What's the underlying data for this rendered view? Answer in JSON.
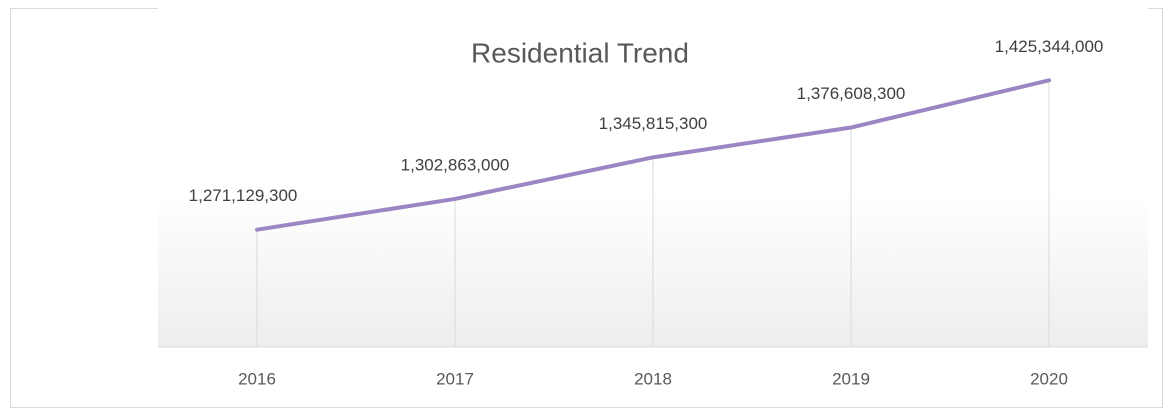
{
  "chart_data": {
    "type": "line",
    "title": "Residential Trend",
    "categories": [
      "2016",
      "2017",
      "2018",
      "2019",
      "2020"
    ],
    "series": [
      {
        "name": "Residential",
        "color": "#9b85c2",
        "values": [
          1271129300,
          1302863000,
          1345815300,
          1376608300,
          1425344000
        ],
        "value_labels": [
          "1,271,129,300",
          "1,302,863,000",
          "1,345,815,300",
          "1,376,608,300",
          "1,425,344,000"
        ]
      }
    ],
    "ylim": [
      1150000000,
      1500000000
    ],
    "drop_lines": true
  }
}
